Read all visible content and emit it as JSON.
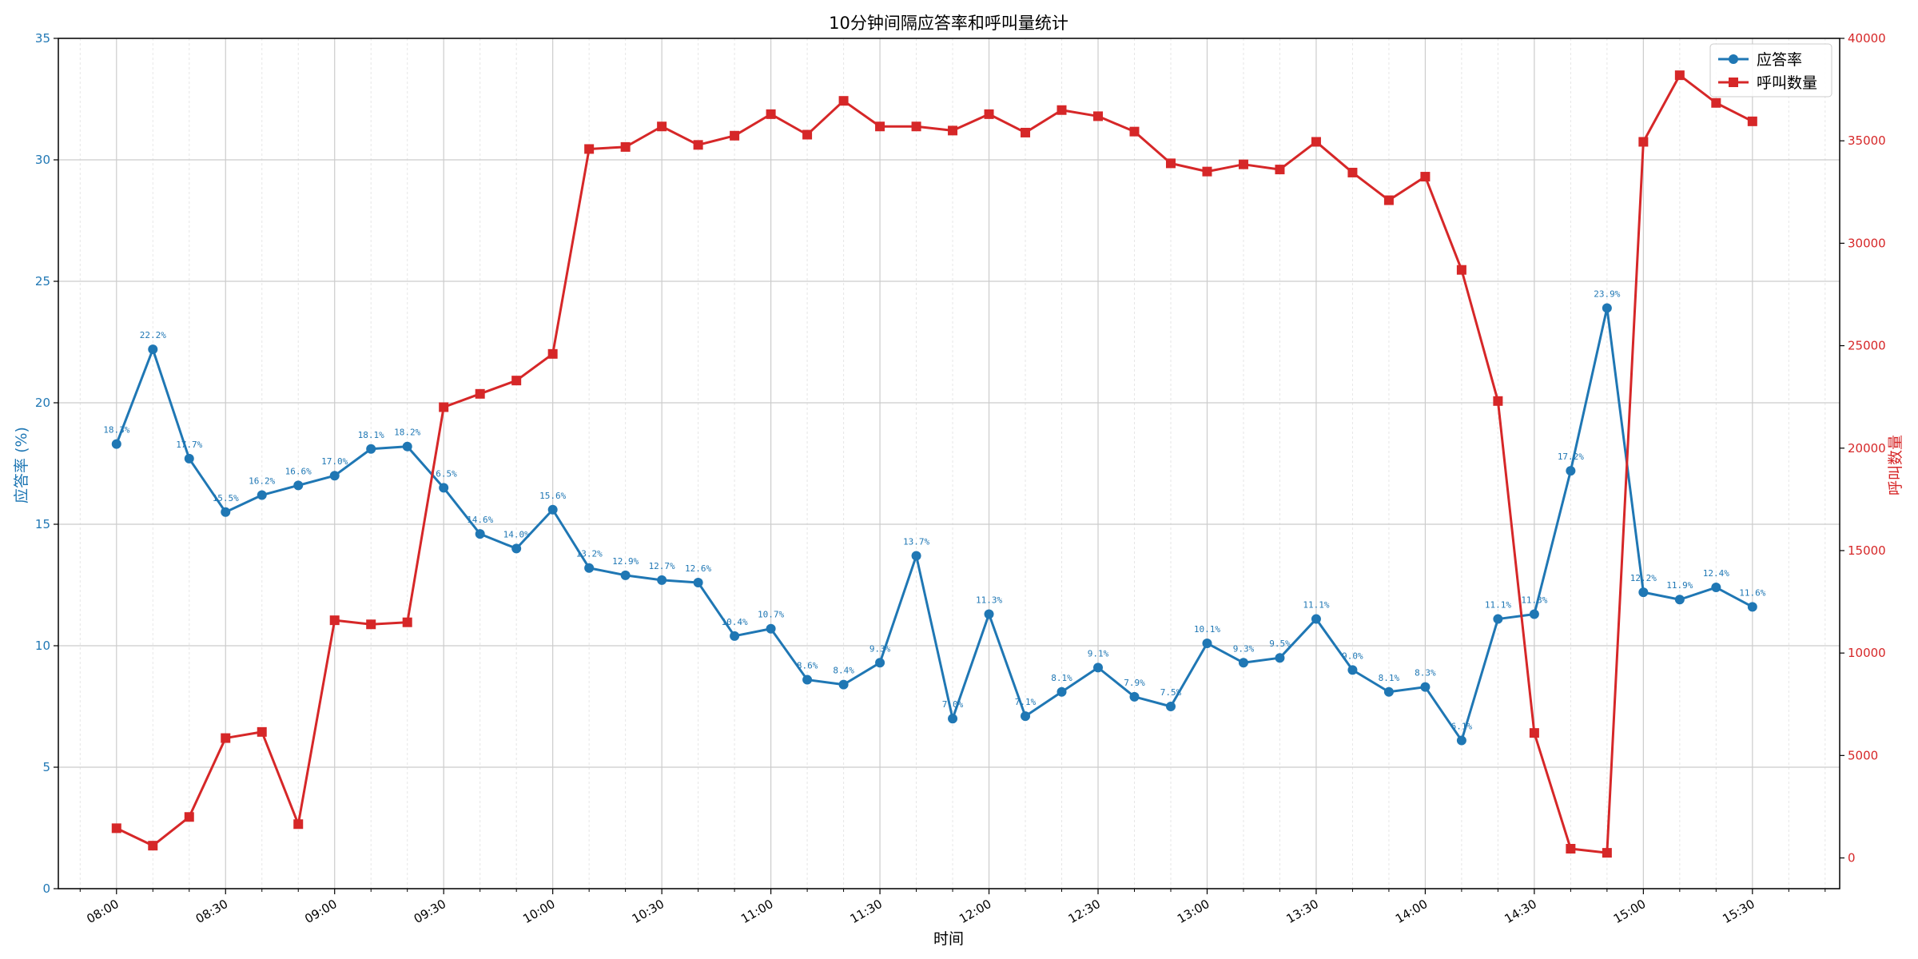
{
  "chart_data": {
    "type": "line",
    "title": "10分钟间隔应答率和呼叫量统计",
    "xlabel": "时间",
    "ylabel_left": "应答率 (%)",
    "ylabel_right": "呼叫数量",
    "x_tick_labels": [
      "08:00",
      "08:30",
      "09:00",
      "09:30",
      "10:00",
      "10:30",
      "11:00",
      "11:30",
      "12:00",
      "12:30",
      "13:00",
      "13:30",
      "14:00",
      "14:30",
      "15:00",
      "15:30"
    ],
    "x": [
      "08:00",
      "08:10",
      "08:20",
      "08:30",
      "08:40",
      "08:50",
      "09:00",
      "09:10",
      "09:20",
      "09:30",
      "09:40",
      "09:50",
      "10:00",
      "10:10",
      "10:20",
      "10:30",
      "10:40",
      "10:50",
      "11:00",
      "11:10",
      "11:20",
      "11:30",
      "11:40",
      "11:50",
      "12:00",
      "12:10",
      "12:20",
      "12:30",
      "12:40",
      "12:50",
      "13:00",
      "13:10",
      "13:20",
      "13:30",
      "13:40",
      "13:50",
      "14:00",
      "14:10",
      "14:20",
      "14:30",
      "14:40",
      "14:50",
      "15:00",
      "15:10",
      "15:20",
      "15:30"
    ],
    "xlim": [
      "07:44",
      "15:54"
    ],
    "ylim_left": [
      0,
      35
    ],
    "yticks_left": [
      0,
      5,
      10,
      15,
      20,
      25,
      30,
      35
    ],
    "ylim_right": [
      -1500,
      40000
    ],
    "yticks_right": [
      0,
      5000,
      10000,
      15000,
      20000,
      25000,
      30000,
      35000,
      40000
    ],
    "grid": true,
    "legend_position": "top-right",
    "series": [
      {
        "name": "应答率",
        "axis": "left",
        "color": "#1f77b4",
        "marker": "circle",
        "values": [
          18.3,
          22.2,
          17.7,
          15.5,
          16.2,
          16.6,
          17.0,
          18.1,
          18.2,
          16.5,
          14.6,
          14.0,
          15.6,
          13.2,
          12.9,
          12.7,
          12.6,
          10.4,
          10.7,
          8.6,
          8.4,
          9.3,
          13.7,
          7.0,
          11.3,
          7.1,
          8.1,
          9.1,
          7.9,
          7.5,
          10.1,
          9.3,
          9.5,
          11.1,
          9.0,
          8.1,
          8.3,
          6.1,
          11.1,
          11.3,
          17.2,
          23.9,
          12.2,
          11.9,
          12.4,
          11.6
        ],
        "labels": [
          "18.3%",
          "22.2%",
          "17.7%",
          "15.5%",
          "16.2%",
          "16.6%",
          "17.0%",
          "18.1%",
          "18.2%",
          "16.5%",
          "14.6%",
          "14.0%",
          "15.6%",
          "13.2%",
          "12.9%",
          "12.7%",
          "12.6%",
          "10.4%",
          "10.7%",
          "8.6%",
          "8.4%",
          "9.3%",
          "13.7%",
          "7.0%",
          "11.3%",
          "7.1%",
          "8.1%",
          "9.1%",
          "7.9%",
          "7.5%",
          "10.1%",
          "9.3%",
          "9.5%",
          "11.1%",
          "9.0%",
          "8.1%",
          "8.3%",
          "6.1%",
          "11.1%",
          "11.3%",
          "17.2%",
          "23.9%",
          "12.2%",
          "11.9%",
          "12.4%",
          "11.6%"
        ]
      },
      {
        "name": "呼叫数量",
        "axis": "right",
        "color": "#d62728",
        "marker": "square",
        "values": [
          1450,
          600,
          2000,
          5850,
          6150,
          1650,
          11600,
          11400,
          11500,
          22000,
          22650,
          23300,
          24600,
          34600,
          34700,
          35700,
          34800,
          35250,
          36300,
          35300,
          36950,
          35700,
          35700,
          35500,
          36300,
          35400,
          36500,
          36200,
          35450,
          33900,
          33500,
          33850,
          33600,
          34950,
          33450,
          32100,
          33250,
          28700,
          22300,
          6100,
          450,
          250,
          34950,
          38200,
          36850,
          35950
        ]
      }
    ]
  }
}
